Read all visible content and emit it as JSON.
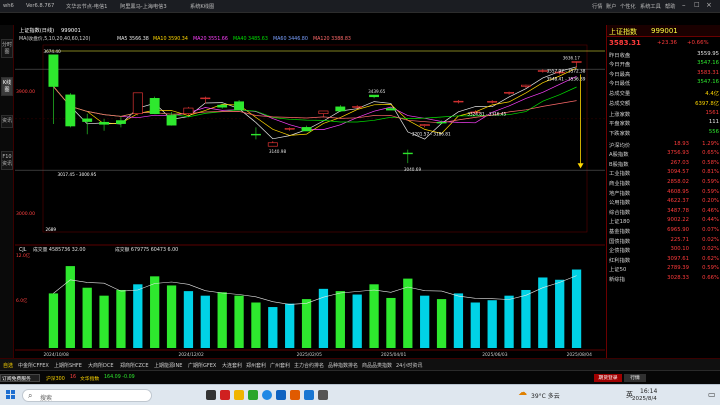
{
  "colors": {
    "up": "#ff3b3b",
    "down": "#2ee82e",
    "ma5": "#e8e8e8",
    "ma10": "#ffd700",
    "ma20": "#ff40ff",
    "ma60": "#00e000",
    "ma120": "#ff6a6a",
    "volume": "#00d2e6",
    "grid": "#5a0000"
  },
  "titlebar": {
    "app_name": "wh6",
    "version": "Ver6.8.767",
    "tabs": [
      "文华云节点-电信1",
      "阿里黑马-上海电信3",
      "系统K线图"
    ],
    "menu": [
      "行情",
      "账户",
      "个性化",
      "系统工具",
      "帮助"
    ]
  },
  "left_tabs": [
    "分时图",
    "K线图",
    "资讯",
    "F10资讯"
  ],
  "chart": {
    "header": {
      "name": "上证指数(日线)",
      "code": "999001",
      "ma_label": "MA(收盘价,5,10,20,40,60,120)",
      "ma5": "MA5 3566.38",
      "ma10": "MA10 3590.34",
      "ma20": "MA20 3551.66",
      "ma40": "MA40 3485.63",
      "ma60": "MA60 3446.80",
      "ma120": "MA120 3388.83"
    },
    "y_labels": [
      "3900.00",
      "3000.00"
    ],
    "vol_header": {
      "label": "CJL",
      "vol": "成交量 4585736 32.00",
      "amt": "成交额 679775 60473 6.00"
    },
    "vol_y_labels": [
      "12.0亿",
      "6.0亿"
    ],
    "x_labels": [
      "2024/10/08",
      "2024/12/02",
      "2025/02/05",
      "2025/04/01",
      "2025/06/03",
      "2025/08/04"
    ],
    "annotations": [
      "3674.40",
      "3439.65",
      "3140.98",
      "3040.69",
      "3636.17",
      "3201.57 - 3186.81",
      "3017.45 - 3000.95",
      "3324.81 - 3316.45",
      "3548.41 - 3536.89",
      "3557.97 - 3572.38",
      "2689"
    ]
  },
  "chart_data": {
    "type": "candlestick",
    "title": "上证指数(日线)",
    "x_start": "2024/10/08",
    "x_end": "2025/08/08",
    "ylim": [
      2650,
      3720
    ],
    "ma_periods": [
      5,
      10,
      20,
      40,
      60,
      120
    ],
    "ohlc": [
      [
        "2024/10/08",
        3674.4,
        3674.4,
        3270,
        3489
      ],
      [
        "2024/10/09",
        3440,
        3450,
        3250,
        3258
      ],
      [
        "2024/10/14",
        3300,
        3330,
        3210,
        3284
      ],
      [
        "2024/10/21",
        3280,
        3300,
        3230,
        3268
      ],
      [
        "2024/11/01",
        3290,
        3310,
        3250,
        3272
      ],
      [
        "2024/11/08",
        3330,
        3450,
        3320,
        3452
      ],
      [
        "2024/11/15",
        3420,
        3430,
        3330,
        3330
      ],
      [
        "2024/11/25",
        3320,
        3340,
        3260,
        3263
      ],
      [
        "2024/12/02",
        3330,
        3370,
        3320,
        3363
      ],
      [
        "2024/12/10",
        3420,
        3430,
        3390,
        3422
      ],
      [
        "2024/12/20",
        3380,
        3390,
        3360,
        3368
      ],
      [
        "2024/12/31",
        3400,
        3410,
        3350,
        3351
      ],
      [
        "2025/01/06",
        3210,
        3250,
        3180,
        3206
      ],
      [
        "2025/01/13",
        3140,
        3170,
        3140.98,
        3160
      ],
      [
        "2025/01/20",
        3240,
        3250,
        3230,
        3244
      ],
      [
        "2025/02/05",
        3250,
        3260,
        3230,
        3229
      ],
      [
        "2025/02/14",
        3330,
        3340,
        3310,
        3346
      ],
      [
        "2025/02/24",
        3370,
        3380,
        3340,
        3346
      ],
      [
        "2025/03/07",
        3370,
        3380,
        3360,
        3372
      ],
      [
        "2025/03/18",
        3439,
        3439.65,
        3420,
        3429
      ],
      [
        "2025/03/28",
        3360,
        3370,
        3350,
        3351
      ],
      [
        "2025/04/07",
        3100,
        3120,
        3040.69,
        3096
      ],
      [
        "2025/04/15",
        3260,
        3270,
        3250,
        3267
      ],
      [
        "2025/04/30",
        3280,
        3290,
        3270,
        3279
      ],
      [
        "2025/05/14",
        3400,
        3410,
        3390,
        3403
      ],
      [
        "2025/05/28",
        3340,
        3350,
        3330,
        3340
      ],
      [
        "2025/06/11",
        3400,
        3410,
        3390,
        3402
      ],
      [
        "2025/06/25",
        3450,
        3460,
        3440,
        3455
      ],
      [
        "2025/07/08",
        3490,
        3500,
        3480,
        3497
      ],
      [
        "2025/07/22",
        3580,
        3590,
        3570,
        3582
      ],
      [
        "2025/07/31",
        3570,
        3580,
        3560,
        3573
      ],
      [
        "2025/08/08",
        3630,
        3636.17,
        3600,
        3635
      ]
    ],
    "volume": [
      4.8,
      7.2,
      5.3,
      4.6,
      5.1,
      5.6,
      6.3,
      5.5,
      5.0,
      4.6,
      4.9,
      4.6,
      4.0,
      3.6,
      3.9,
      4.3,
      5.2,
      5.0,
      4.7,
      5.6,
      4.4,
      6.1,
      4.6,
      4.3,
      4.8,
      4.0,
      4.2,
      4.6,
      5.1,
      6.2,
      6.0,
      6.9
    ]
  },
  "quote": {
    "title": "上证指数",
    "code": "999001",
    "price": "3583.31",
    "change": "+23.36",
    "pct": "+0.66%",
    "rows": [
      [
        "昨日收盘",
        "3559.95",
        "wh"
      ],
      [
        "今日开盘",
        "3547.16",
        "dn"
      ],
      [
        "今日最高",
        "3583.31",
        "up"
      ],
      [
        "今日最低",
        "3547.16",
        "dn"
      ],
      [
        "总成交量",
        "4.4亿",
        "yl"
      ],
      [
        "总成交额",
        "6397.8亿",
        "yl"
      ]
    ],
    "breadth": [
      [
        "上涨家数",
        "1561",
        "up"
      ],
      [
        "平盘家数",
        "111",
        "wh"
      ],
      [
        "下跌家数",
        "556",
        "dn"
      ]
    ],
    "indices": [
      [
        "沪深均价",
        "18.93",
        "1.29%"
      ],
      [
        "A股指数",
        "3756.93",
        "0.65%"
      ],
      [
        "B股指数",
        "267.03",
        "0.58%"
      ],
      [
        "工业指数",
        "3094.57",
        "0.81%"
      ],
      [
        "商业指数",
        "2858.02",
        "0.59%"
      ],
      [
        "地产指数",
        "4608.95",
        "0.59%"
      ],
      [
        "公用指数",
        "4622.37",
        "0.20%"
      ],
      [
        "综合指数",
        "3487.78",
        "0.46%"
      ],
      [
        "上证180",
        "9002.22",
        "0.44%"
      ],
      [
        "基金指数",
        "6965.90",
        "0.07%"
      ],
      [
        "国债指数",
        "225.71",
        "0.02%"
      ],
      [
        "企债指数",
        "300.10",
        "0.02%"
      ],
      [
        "红利指数",
        "3097.61",
        "0.62%"
      ],
      [
        "上证50",
        "2789.39",
        "0.59%"
      ],
      [
        "新综指",
        "3028.33",
        "0.66%"
      ]
    ]
  },
  "bottom_tabs": [
    "自选",
    "中金所CFFEX",
    "上期所SHFE",
    "大商所DCE",
    "郑商所CZCE",
    "上期能源INE",
    "广期所GFEX",
    "大连套利",
    "郑州套利",
    "广州套利",
    "主力合约排名",
    "品种指数排名",
    "商品品类指数",
    "24小时资讯"
  ],
  "statusbar": {
    "subscribe": "订阅免费服务",
    "ticker": "沪深300",
    "ticker_val": "16",
    "ticker_label": "文华指数",
    "ticker_nums": "164.09  -0.09",
    "login": "期货登录",
    "market": "行情"
  },
  "taskbar": {
    "search_placeholder": "搜索",
    "weather": "39°C 多云",
    "ime": "英",
    "time": "16:14",
    "date": "2025/8/4"
  }
}
